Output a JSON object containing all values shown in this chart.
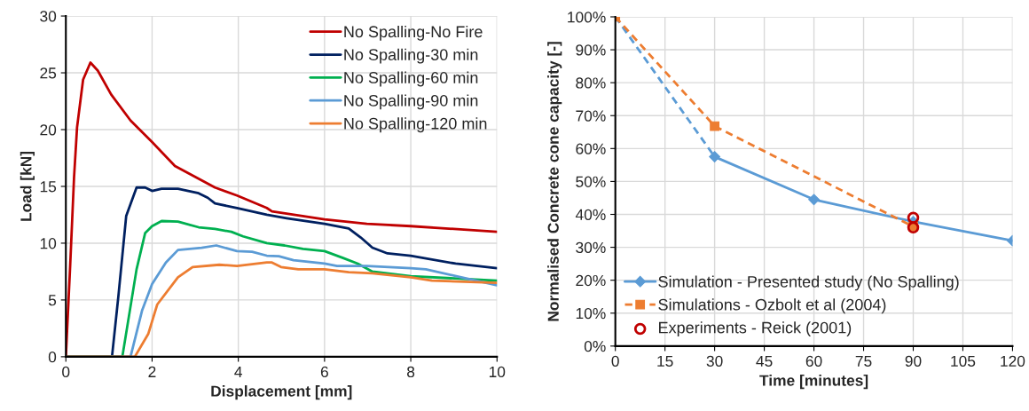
{
  "chart_data": [
    {
      "type": "line",
      "xlabel": "Displacement [mm]",
      "ylabel": "Load [kN]",
      "xlim": [
        0,
        10
      ],
      "ylim": [
        0,
        30
      ],
      "xticks": [
        0,
        2,
        4,
        6,
        8,
        10
      ],
      "yticks": [
        0,
        5,
        10,
        15,
        20,
        25,
        30
      ],
      "grid": true,
      "legend": "top right",
      "marker": "none",
      "line_style": "solid",
      "series": [
        {
          "name": "No Spalling-No Fire",
          "color": "#c00000",
          "x": [
            0,
            0.1,
            0.19,
            0.26,
            0.4,
            0.57,
            0.74,
            1.05,
            1.5,
            2.0,
            2.53,
            3.46,
            3.97,
            4.66,
            4.78,
            6,
            6.98,
            8,
            10
          ],
          "values": [
            0,
            8,
            15.8,
            20.2,
            24.4,
            25.9,
            25.2,
            23.1,
            20.8,
            18.9,
            16.8,
            14.9,
            14.2,
            13.1,
            12.8,
            12.1,
            11.7,
            11.5,
            11.0
          ]
        },
        {
          "name": "No Spalling-30 min",
          "color": "#002060",
          "x": [
            0,
            1.07,
            1.22,
            1.4,
            1.64,
            1.84,
            2.0,
            2.22,
            2.6,
            3.08,
            3.29,
            3.46,
            3.97,
            4.66,
            5.12,
            6,
            6.56,
            6.84,
            7.11,
            7.46,
            8,
            9.04,
            10
          ],
          "values": [
            0,
            0,
            5.4,
            12.4,
            14.9,
            14.9,
            14.6,
            14.8,
            14.8,
            14.4,
            14.0,
            13.5,
            13.1,
            12.5,
            12.2,
            11.7,
            11.3,
            10.5,
            9.6,
            9.1,
            8.9,
            8.2,
            7.8
          ]
        },
        {
          "name": "No Spalling-60 min",
          "color": "#00b050",
          "x": [
            0,
            1.31,
            1.64,
            1.84,
            2.0,
            2.22,
            2.6,
            3.08,
            3.46,
            3.84,
            4.11,
            4.66,
            5.07,
            5.5,
            6,
            6.43,
            6.77,
            7.11,
            8,
            10
          ],
          "values": [
            0,
            0,
            7.7,
            10.9,
            11.5,
            11.95,
            11.9,
            11.4,
            11.25,
            11.0,
            10.6,
            10.0,
            9.8,
            9.5,
            9.3,
            8.7,
            8.2,
            7.5,
            7.1,
            6.7
          ]
        },
        {
          "name": "No Spalling-90 min",
          "color": "#5b9bd5",
          "x": [
            0,
            1.5,
            1.77,
            2.0,
            2.32,
            2.6,
            3.15,
            3.49,
            3.97,
            4.32,
            4.66,
            4.94,
            5.28,
            6,
            6.29,
            6.98,
            8,
            8.35,
            9.17,
            10
          ],
          "values": [
            0,
            0,
            4.1,
            6.4,
            8.3,
            9.4,
            9.6,
            9.8,
            9.3,
            9.25,
            8.9,
            8.85,
            8.5,
            8.2,
            8.0,
            8.0,
            7.8,
            7.7,
            7.0,
            6.3
          ]
        },
        {
          "name": "No Spalling-120 min",
          "color": "#ed7d31",
          "x": [
            0,
            1.6,
            1.91,
            2.12,
            2.6,
            2.94,
            3.56,
            3.97,
            4.66,
            4.78,
            4.99,
            5.39,
            6,
            6.56,
            7.11,
            8,
            8.49,
            10
          ],
          "values": [
            0,
            0,
            2.0,
            4.6,
            7.0,
            7.9,
            8.1,
            8.0,
            8.3,
            8.3,
            7.9,
            7.7,
            7.7,
            7.45,
            7.35,
            7.0,
            6.7,
            6.5
          ]
        }
      ]
    },
    {
      "type": "line",
      "xlabel": "Time [minutes]",
      "ylabel": "Normalised Concrete cone capacity [-]",
      "xlim": [
        0,
        120
      ],
      "ylim": [
        0,
        100
      ],
      "xticks": [
        0,
        15,
        30,
        45,
        60,
        75,
        90,
        105,
        120
      ],
      "yticks": [
        {
          "value": 0,
          "label": "0%"
        },
        {
          "value": 10,
          "label": "10%"
        },
        {
          "value": 20,
          "label": "20%"
        },
        {
          "value": 30,
          "label": "30%"
        },
        {
          "value": 40,
          "label": "40%"
        },
        {
          "value": 50,
          "label": "50%"
        },
        {
          "value": 60,
          "label": "60%"
        },
        {
          "value": 70,
          "label": "70%"
        },
        {
          "value": 80,
          "label": "80%"
        },
        {
          "value": 90,
          "label": "90%"
        },
        {
          "value": 100,
          "label": "100%"
        }
      ],
      "grid": true,
      "legend": "bottom left",
      "series": [
        {
          "color": "#5b9bd5",
          "x": [
            0,
            30
          ],
          "values": [
            100,
            57.5
          ],
          "line_style": "dashed"
        },
        {
          "name": "Simulation - Presented study (No Spalling)",
          "color": "#5b9bd5",
          "x": [
            30,
            60,
            90,
            120
          ],
          "values": [
            57.5,
            44.5,
            37.8,
            32
          ],
          "line_style": "solid",
          "marker": "diamond"
        },
        {
          "name": "Simulations - Ozbolt et al (2004)",
          "color": "#ed7d31",
          "x": [
            0,
            30,
            90
          ],
          "values": [
            100,
            66.8,
            36.3
          ],
          "line_style": "dashed",
          "marker": "square"
        },
        {
          "name": "Experiments - Reick (2001)",
          "type": "scatter",
          "color": "#c00000",
          "x": [
            90,
            90
          ],
          "values": [
            39,
            36
          ],
          "marker": "circle"
        }
      ]
    }
  ]
}
